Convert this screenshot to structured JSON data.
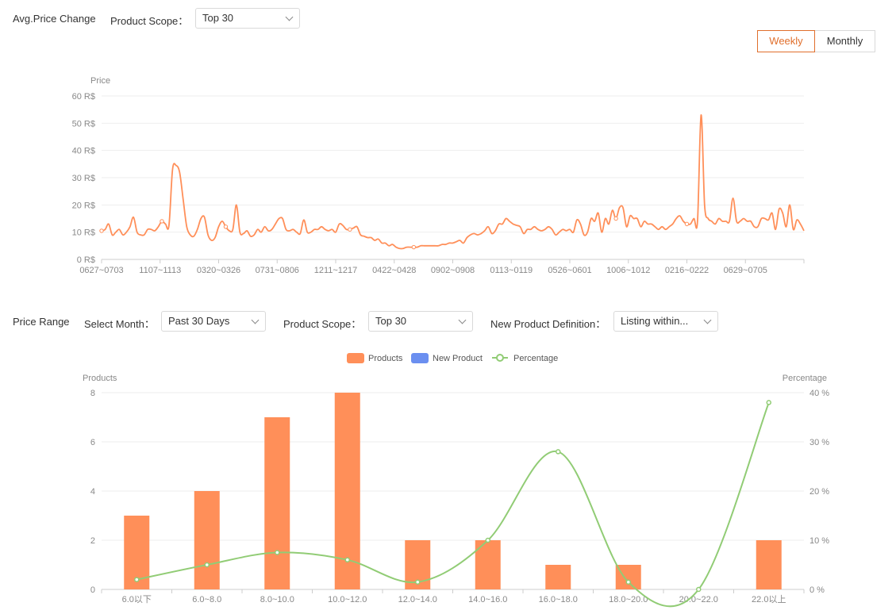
{
  "top": {
    "title": "Avg.Price Change",
    "scope_label": "Product Scope：",
    "scope_value": "Top 30",
    "toggle_weekly": "Weekly",
    "toggle_monthly": "Monthly"
  },
  "bottom": {
    "title": "Price Range",
    "month_label": "Select Month：",
    "month_value": "Past 30 Days",
    "scope_label": "Product Scope：",
    "scope_value": "Top 30",
    "def_label": "New Product Definition：",
    "def_value": "Listing within..."
  },
  "colors": {
    "accent": "#e06f2c",
    "line": "#ff8f59",
    "bar": "#ff8f59",
    "new_product": "#6b8ff0",
    "percentage": "#91cc75"
  },
  "chart_data": [
    {
      "type": "line",
      "ylabel": "Price",
      "ylim": [
        0,
        60
      ],
      "yticks": [
        "0 R$",
        "10 R$",
        "20 R$",
        "30 R$",
        "40 R$",
        "50 R$",
        "60 R$"
      ],
      "xtick_labels": [
        "0627~0703",
        "1107~1113",
        "0320~0326",
        "0731~0806",
        "1211~1217",
        "0422~0428",
        "0902~0908",
        "0113~0119",
        "0526~0601",
        "1006~1012",
        "0216~0222",
        "0629~0705"
      ],
      "values": [
        10.5,
        11,
        13,
        9,
        10,
        11,
        9,
        10,
        12,
        15.5,
        10,
        9,
        9,
        11,
        11,
        10.5,
        12,
        14,
        13,
        12.5,
        33,
        34.5,
        32,
        22,
        12,
        9,
        8.5,
        11,
        15,
        15.5,
        9,
        7,
        8,
        12,
        14,
        12,
        10.5,
        11,
        20,
        10,
        9.5,
        10.5,
        8.5,
        9,
        11,
        10,
        12,
        10.5,
        11,
        13,
        15,
        15,
        11,
        10.5,
        11,
        10,
        9.5,
        14.5,
        10,
        10,
        11,
        11,
        12,
        11,
        10.5,
        11,
        10,
        13,
        12.5,
        11,
        11,
        11.5,
        12,
        9,
        8.5,
        8,
        8,
        7,
        7.5,
        6,
        6,
        5,
        5.5,
        4.5,
        4,
        4,
        4.5,
        4.5,
        4.5,
        4.5,
        5,
        5,
        5,
        5,
        5,
        5,
        5.5,
        5.5,
        6,
        6,
        6.5,
        7,
        6,
        8,
        9,
        9.5,
        9,
        9.5,
        10.5,
        12,
        9.5,
        10.5,
        13,
        13,
        15,
        14,
        13,
        12.5,
        12,
        9.5,
        11,
        11,
        12,
        11,
        10.5,
        11,
        12,
        11,
        9,
        10,
        11,
        10.5,
        11,
        10,
        14.5,
        13,
        9,
        10,
        15,
        14,
        17,
        10,
        15,
        13,
        18,
        15,
        19,
        19,
        12,
        16,
        15,
        15,
        12,
        14,
        13,
        13,
        12,
        11,
        12,
        11,
        12,
        13,
        15,
        16,
        14,
        13,
        13,
        15,
        14,
        53,
        20,
        15,
        14,
        13,
        15,
        14,
        14,
        14,
        22.5,
        14,
        14,
        15,
        14,
        14,
        12,
        12,
        15,
        15,
        14.5,
        17,
        11,
        18.5,
        17,
        12,
        20,
        11,
        14.5,
        13,
        10.5
      ]
    },
    {
      "type": "bar",
      "legend": [
        "Products",
        "New Product",
        "Percentage"
      ],
      "ylabel": "Products",
      "y2label": "Percentage",
      "ylim": [
        0,
        8
      ],
      "y2lim": [
        0,
        40
      ],
      "yticks": [
        "0",
        "2",
        "4",
        "6",
        "8"
      ],
      "y2ticks": [
        "0 %",
        "10 %",
        "20 %",
        "30 %",
        "40 %"
      ],
      "categories": [
        "6.0以下",
        "6.0~8.0",
        "8.0~10.0",
        "10.0~12.0",
        "12.0~14.0",
        "14.0~16.0",
        "16.0~18.0",
        "18.0~20.0",
        "20.0~22.0",
        "22.0以上"
      ],
      "series": [
        {
          "name": "Products",
          "values": [
            3,
            4,
            7,
            8,
            2,
            2,
            1,
            1,
            0,
            2
          ]
        },
        {
          "name": "New Product",
          "values": [
            0,
            0,
            0,
            0,
            0,
            0,
            0,
            0,
            0,
            0
          ]
        },
        {
          "name": "Percentage",
          "values": [
            2,
            5,
            7.5,
            6,
            1.5,
            10,
            28,
            1.5,
            0,
            38
          ]
        }
      ]
    }
  ]
}
